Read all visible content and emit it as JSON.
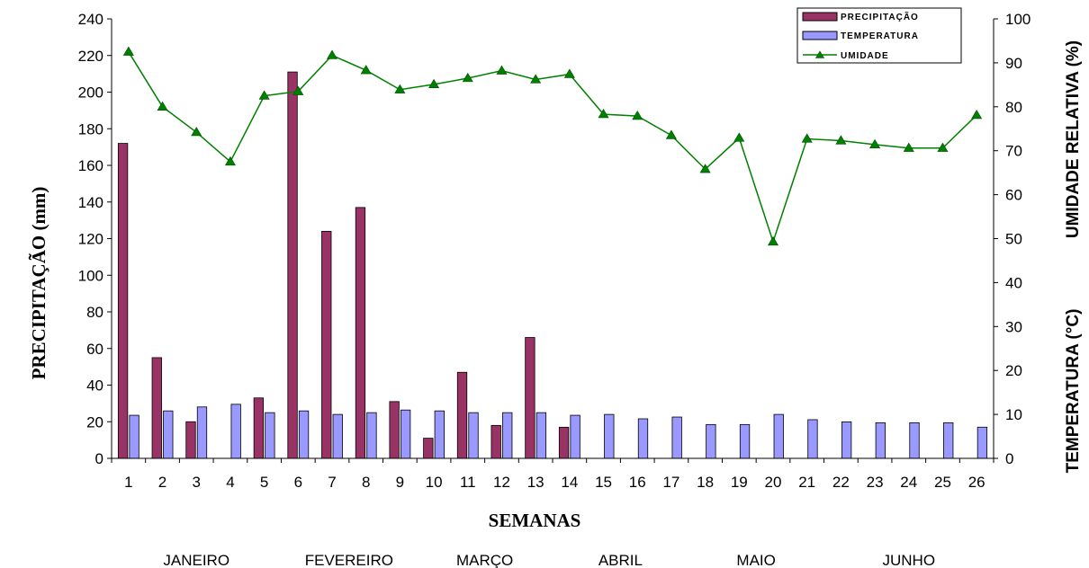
{
  "chart_data": {
    "type": "bar",
    "categories": [
      "1",
      "2",
      "3",
      "4",
      "5",
      "6",
      "7",
      "8",
      "9",
      "10",
      "11",
      "12",
      "13",
      "14",
      "15",
      "16",
      "17",
      "18",
      "19",
      "20",
      "21",
      "22",
      "23",
      "24",
      "25",
      "26"
    ],
    "xlabel": "SEMANAS",
    "ylabel_left": "PRECIPITAÇÃO (mm)",
    "ylabel_right_top": "UMIDADE RELATIVA (%)",
    "ylabel_right_bottom": "TEMPERATURA (°C)",
    "ylim_left": [
      0,
      240
    ],
    "yticks_left": [
      0,
      20,
      40,
      60,
      80,
      100,
      120,
      140,
      160,
      180,
      200,
      220,
      240
    ],
    "ylim_right": [
      0,
      100
    ],
    "yticks_right": [
      0,
      10,
      20,
      30,
      40,
      50,
      60,
      70,
      80,
      90,
      100
    ],
    "months": [
      "JANEIRO",
      "FEVEREIRO",
      "MARÇO",
      "ABRIL",
      "MAIO",
      "JUNHO"
    ],
    "legend_position": "top-right",
    "grid": false,
    "series": [
      {
        "name": "PRECIPITAÇÃO",
        "type": "bar",
        "axis": "left",
        "color": "#993366",
        "values": [
          172,
          55,
          20,
          0,
          33,
          211,
          124,
          137,
          31,
          11,
          47,
          18,
          66,
          17,
          0,
          0,
          0,
          0,
          0,
          0,
          0,
          0,
          0,
          0,
          0,
          0
        ]
      },
      {
        "name": "TEMPERATURA",
        "type": "bar",
        "axis": "right",
        "color": "#9999ff",
        "values": [
          9.8,
          10.8,
          11.7,
          12.3,
          10.4,
          10.8,
          10.0,
          10.4,
          11.0,
          10.8,
          10.4,
          10.4,
          10.4,
          9.8,
          10.0,
          9.0,
          9.4,
          7.7,
          7.7,
          10.0,
          8.8,
          8.3,
          8.1,
          8.1,
          8.1,
          7.1
        ]
      },
      {
        "name": "UMIDADE",
        "type": "line",
        "axis": "right",
        "color": "#008000",
        "values": [
          92.5,
          80.0,
          74.2,
          67.5,
          82.5,
          83.5,
          91.7,
          88.3,
          83.9,
          85.1,
          86.5,
          88.2,
          86.2,
          87.4,
          78.3,
          77.9,
          73.5,
          65.8,
          72.9,
          49.3,
          72.7,
          72.3,
          71.4,
          70.6,
          70.6,
          78.1
        ]
      }
    ]
  }
}
